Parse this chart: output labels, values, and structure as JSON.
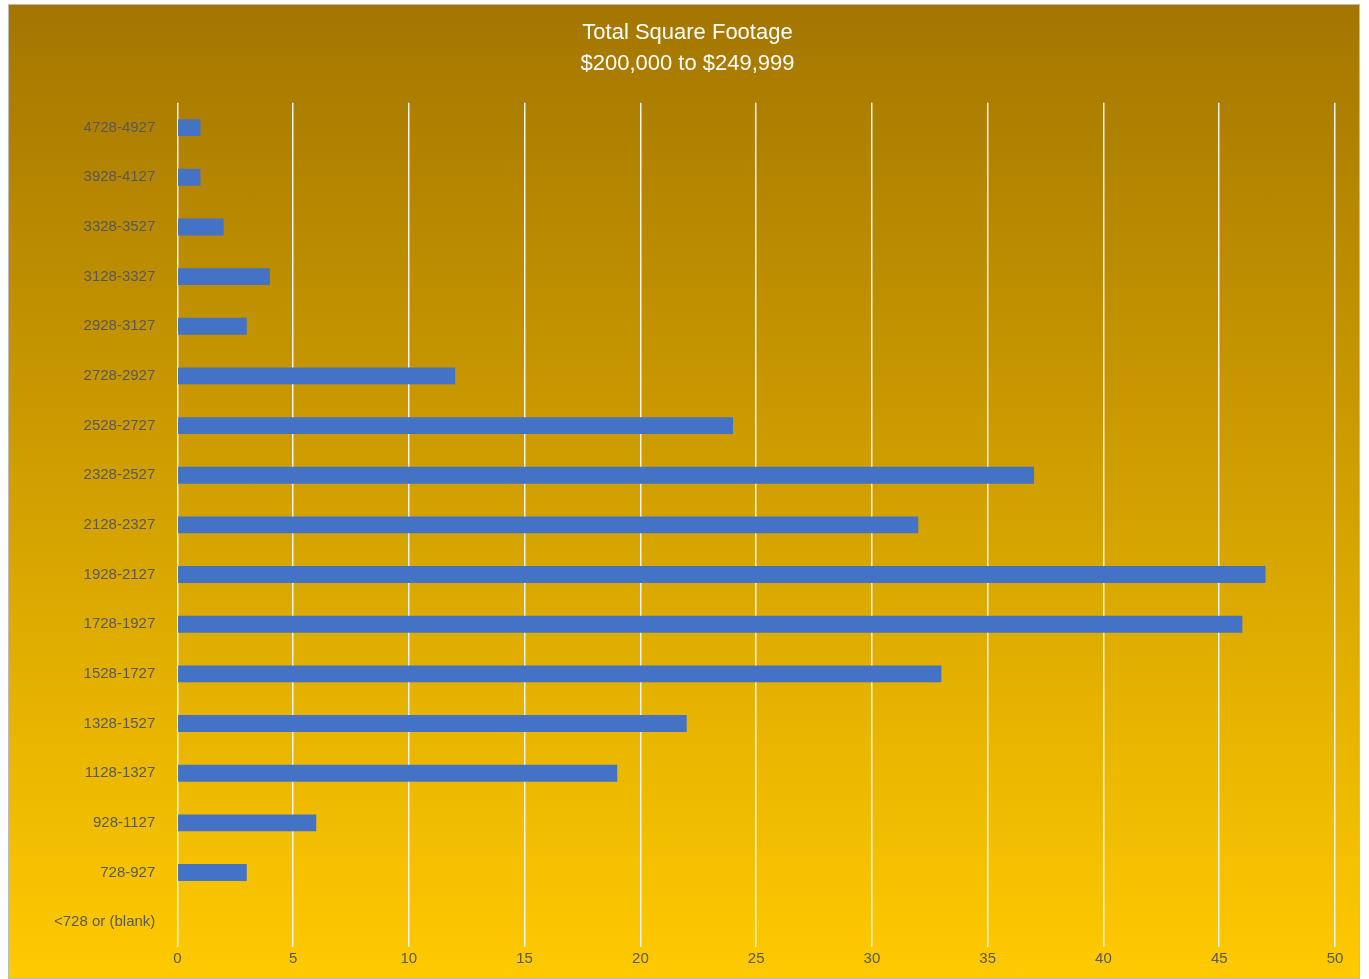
{
  "chart_data": {
    "type": "bar",
    "orientation": "horizontal",
    "title": "Total Square Footage",
    "subtitle": "$200,000 to $249,999",
    "categories": [
      "4728-4927",
      "3928-4127",
      "3328-3527",
      "3128-3327",
      "2928-3127",
      "2728-2927",
      "2528-2727",
      "2328-2527",
      "2128-2327",
      "1928-2127",
      "1728-1927",
      "1528-1727",
      "1328-1527",
      "1128-1327",
      "928-1127",
      "728-927",
      "<728 or (blank)"
    ],
    "values": [
      1,
      1,
      2,
      4,
      3,
      12,
      24,
      37,
      32,
      47,
      46,
      33,
      22,
      19,
      6,
      3,
      0
    ],
    "color": "#4472c4",
    "xlim": [
      0,
      50
    ],
    "xticks": [
      0,
      5,
      10,
      15,
      20,
      25,
      30,
      35,
      40,
      45,
      50
    ],
    "grid": "x",
    "legend": false
  }
}
